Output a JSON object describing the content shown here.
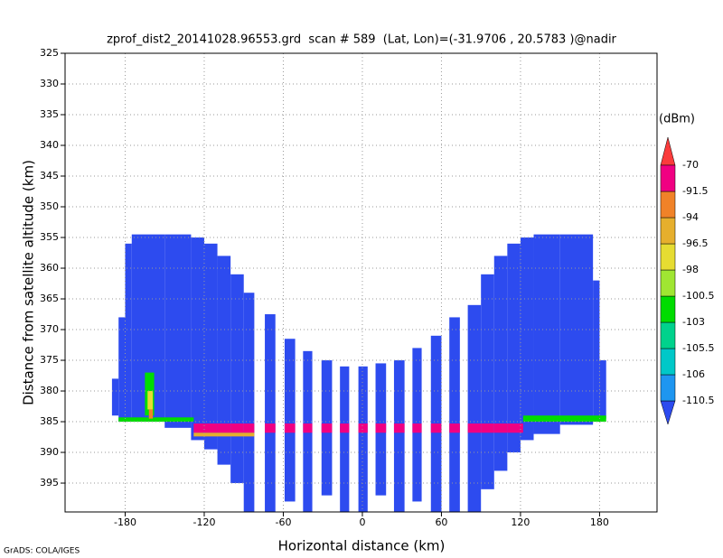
{
  "chart_data": {
    "type": "heatmap",
    "title": "zprof_dist2_20141028.96553.grd  scan # 589  (Lat, Lon)=(-31.9706 , 20.5783 )@nadir",
    "x_label": "Horizontal distance (km)",
    "y_label": "Distance from satellite altitude (km)",
    "colorbar_label": "(dBm)",
    "footer": "GrADS: COLA/IGES",
    "xlim": [
      -225.6,
      223.6
    ],
    "ylim": [
      325,
      399.7
    ],
    "y_inverted": true,
    "xticks": [
      -180,
      -120,
      -60,
      0,
      60,
      120,
      180
    ],
    "yticks": [
      325,
      330,
      335,
      340,
      345,
      350,
      355,
      360,
      365,
      370,
      375,
      380,
      385,
      390,
      395
    ],
    "grid": true,
    "levels": [
      -110.5,
      -106,
      -105.5,
      -103,
      -100.5,
      -98,
      -96.5,
      -94,
      -91.5,
      -70
    ],
    "colors": [
      "#2d4bef",
      "#1e96f0",
      "#00c8c8",
      "#00d28c",
      "#00dc00",
      "#a0e632",
      "#e6dc32",
      "#e6af2d",
      "#f08228",
      "#f00082",
      "#fa3c3c"
    ],
    "field_value": -112,
    "columns": [
      {
        "x": [
          -190,
          -185
        ],
        "top": 378,
        "bottom": 384
      },
      {
        "x": [
          -185,
          -180
        ],
        "top": 368,
        "bottom": 385
      },
      {
        "x": [
          -180,
          -175
        ],
        "top": 356,
        "bottom": 385
      },
      {
        "x": [
          -175,
          -150
        ],
        "top": 354.5,
        "bottom": 385
      },
      {
        "x": [
          -150,
          -130
        ],
        "top": 354.5,
        "bottom": 386
      },
      {
        "x": [
          -130,
          -120
        ],
        "top": 355,
        "bottom": 388
      },
      {
        "x": [
          -120,
          -110
        ],
        "top": 356,
        "bottom": 389.5
      },
      {
        "x": [
          -110,
          -100
        ],
        "top": 358,
        "bottom": 392
      },
      {
        "x": [
          -100,
          -90
        ],
        "top": 361,
        "bottom": 395
      },
      {
        "x": [
          -90,
          -82
        ],
        "top": 364,
        "bottom": 399.7
      },
      {
        "x": [
          -74,
          -66
        ],
        "top": 367.5,
        "bottom": 399.7
      },
      {
        "x": [
          -59,
          -51
        ],
        "top": 371.5,
        "bottom": 398
      },
      {
        "x": [
          -45,
          -38
        ],
        "top": 373.5,
        "bottom": 399.7
      },
      {
        "x": [
          -31,
          -23
        ],
        "top": 375,
        "bottom": 397
      },
      {
        "x": [
          -17,
          -10
        ],
        "top": 376,
        "bottom": 399.7
      },
      {
        "x": [
          -3,
          4
        ],
        "top": 376,
        "bottom": 399.7
      },
      {
        "x": [
          10,
          18
        ],
        "top": 375.5,
        "bottom": 397
      },
      {
        "x": [
          24,
          32
        ],
        "top": 375,
        "bottom": 399.7
      },
      {
        "x": [
          38,
          45
        ],
        "top": 373,
        "bottom": 398
      },
      {
        "x": [
          52,
          60
        ],
        "top": 371,
        "bottom": 399.7
      },
      {
        "x": [
          66,
          74
        ],
        "top": 368,
        "bottom": 399.7
      },
      {
        "x": [
          80,
          90
        ],
        "top": 366,
        "bottom": 399.7
      },
      {
        "x": [
          90,
          100
        ],
        "top": 361,
        "bottom": 396
      },
      {
        "x": [
          100,
          110
        ],
        "top": 358,
        "bottom": 393
      },
      {
        "x": [
          110,
          120
        ],
        "top": 356,
        "bottom": 390
      },
      {
        "x": [
          120,
          130
        ],
        "top": 355,
        "bottom": 388
      },
      {
        "x": [
          130,
          150
        ],
        "top": 354.5,
        "bottom": 387
      },
      {
        "x": [
          150,
          175
        ],
        "top": 354.5,
        "bottom": 385.5
      },
      {
        "x": [
          175,
          180
        ],
        "top": 362,
        "bottom": 385
      },
      {
        "x": [
          180,
          185
        ],
        "top": 375,
        "bottom": 384.5
      }
    ],
    "surface": {
      "x": [
        -128,
        122
      ],
      "top": 385.3,
      "bottom": 386.8,
      "value": -91.5
    },
    "echoes": [
      {
        "x": [
          -185,
          -128
        ],
        "top": 384.3,
        "bottom": 385,
        "value": -103
      },
      {
        "x": [
          122,
          185
        ],
        "top": 384,
        "bottom": 385,
        "value": -103
      },
      {
        "x": [
          -128,
          -82
        ],
        "top": 386.8,
        "bottom": 387.4,
        "value": -96.5
      },
      {
        "x": [
          -165,
          -158
        ],
        "top": 377,
        "bottom": 384,
        "value": -103
      },
      {
        "x": [
          -163,
          -159
        ],
        "top": 380,
        "bottom": 383,
        "value": -98
      },
      {
        "x": [
          -162,
          -159
        ],
        "top": 383,
        "bottom": 384.5,
        "value": -94
      }
    ]
  }
}
